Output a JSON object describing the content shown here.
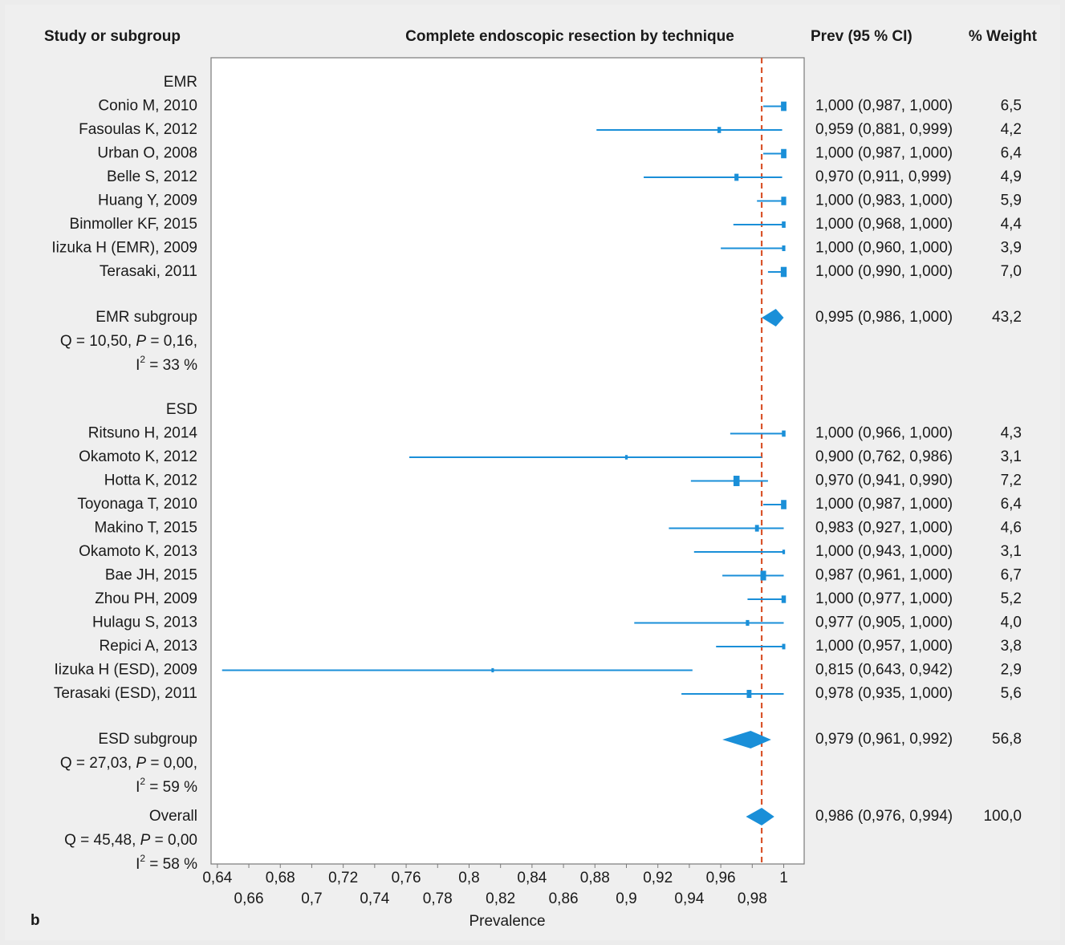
{
  "chart_data": {
    "type": "forest",
    "title": "Complete endoscopic resection by technique",
    "column_headers": {
      "study": "Study or subgroup",
      "estimate": "Prev (95 % CI)",
      "weight": "% Weight"
    },
    "x_label": "Prevalence",
    "panel_label": "b",
    "color": "#1a8fd8",
    "reference_line": {
      "value": 0.986,
      "color": "#d9542c",
      "style": "dashed"
    },
    "xlim": [
      0.636,
      1.013
    ],
    "xticks": [
      {
        "value": 0.64,
        "label": "0,64"
      },
      {
        "value": 0.66,
        "label": "0,66"
      },
      {
        "value": 0.68,
        "label": "0,68"
      },
      {
        "value": 0.7,
        "label": "0,7"
      },
      {
        "value": 0.72,
        "label": "0,72"
      },
      {
        "value": 0.74,
        "label": "0,74"
      },
      {
        "value": 0.76,
        "label": "0,76"
      },
      {
        "value": 0.78,
        "label": "0,78"
      },
      {
        "value": 0.8,
        "label": "0,8"
      },
      {
        "value": 0.82,
        "label": "0,82"
      },
      {
        "value": 0.84,
        "label": "0,84"
      },
      {
        "value": 0.86,
        "label": "0,86"
      },
      {
        "value": 0.88,
        "label": "0,88"
      },
      {
        "value": 0.9,
        "label": "0,9"
      },
      {
        "value": 0.92,
        "label": "0,92"
      },
      {
        "value": 0.94,
        "label": "0,94"
      },
      {
        "value": 0.96,
        "label": "0,96"
      },
      {
        "value": 0.98,
        "label": "0,98"
      },
      1
    ],
    "groups": [
      {
        "name": "EMR",
        "studies": [
          {
            "label": "Conio M, 2010",
            "estimate": 1.0,
            "lower": 0.987,
            "upper": 1.0,
            "ci_label": "1,000 (0,987, 1,000)",
            "weight": 6.5,
            "weight_label": "6,5"
          },
          {
            "label": "Fasoulas K, 2012",
            "estimate": 0.959,
            "lower": 0.881,
            "upper": 0.999,
            "ci_label": "0,959 (0,881, 0,999)",
            "weight": 4.2,
            "weight_label": "4,2"
          },
          {
            "label": "Urban O, 2008",
            "estimate": 1.0,
            "lower": 0.987,
            "upper": 1.0,
            "ci_label": "1,000 (0,987, 1,000)",
            "weight": 6.4,
            "weight_label": "6,4"
          },
          {
            "label": "Belle S, 2012",
            "estimate": 0.97,
            "lower": 0.911,
            "upper": 0.999,
            "ci_label": "0,970 (0,911, 0,999)",
            "weight": 4.9,
            "weight_label": "4,9"
          },
          {
            "label": "Huang Y, 2009",
            "estimate": 1.0,
            "lower": 0.983,
            "upper": 1.0,
            "ci_label": "1,000 (0,983, 1,000)",
            "weight": 5.9,
            "weight_label": "5,9"
          },
          {
            "label": "Binmoller KF, 2015",
            "estimate": 1.0,
            "lower": 0.968,
            "upper": 1.0,
            "ci_label": "1,000 (0,968, 1,000)",
            "weight": 4.4,
            "weight_label": "4,4"
          },
          {
            "label": "Iizuka H (EMR), 2009",
            "estimate": 1.0,
            "lower": 0.96,
            "upper": 1.0,
            "ci_label": "1,000 (0,960, 1,000)",
            "weight": 3.9,
            "weight_label": "3,9"
          },
          {
            "label": "Terasaki, 2011",
            "estimate": 1.0,
            "lower": 0.99,
            "upper": 1.0,
            "ci_label": "1,000 (0,990, 1,000)",
            "weight": 7.0,
            "weight_label": "7,0"
          }
        ],
        "subgroup": {
          "label": "EMR subgroup",
          "estimate": 0.995,
          "lower": 0.986,
          "upper": 1.0,
          "ci_label": "0,995 (0,986, 1,000)",
          "weight": 43.2,
          "weight_label": "43,2",
          "heterogeneity": {
            "q": "Q = 10,50, ",
            "p_symbol": "P",
            "p": " = 0,16,",
            "i_symbol": "I",
            "i_exponent": "2",
            "i": " = 33 %"
          }
        }
      },
      {
        "name": "ESD",
        "studies": [
          {
            "label": "Ritsuno H, 2014",
            "estimate": 1.0,
            "lower": 0.966,
            "upper": 1.0,
            "ci_label": "1,000 (0,966, 1,000)",
            "weight": 4.3,
            "weight_label": "4,3"
          },
          {
            "label": "Okamoto K, 2012",
            "estimate": 0.9,
            "lower": 0.762,
            "upper": 0.986,
            "ci_label": "0,900 (0,762, 0,986)",
            "weight": 3.1,
            "weight_label": "3,1"
          },
          {
            "label": "Hotta K, 2012",
            "estimate": 0.97,
            "lower": 0.941,
            "upper": 0.99,
            "ci_label": "0,970 (0,941, 0,990)",
            "weight": 7.2,
            "weight_label": "7,2"
          },
          {
            "label": "Toyonaga T, 2010",
            "estimate": 1.0,
            "lower": 0.987,
            "upper": 1.0,
            "ci_label": "1,000 (0,987, 1,000)",
            "weight": 6.4,
            "weight_label": "6,4"
          },
          {
            "label": "Makino T, 2015",
            "estimate": 0.983,
            "lower": 0.927,
            "upper": 1.0,
            "ci_label": "0,983 (0,927, 1,000)",
            "weight": 4.6,
            "weight_label": "4,6"
          },
          {
            "label": "Okamoto K, 2013",
            "estimate": 1.0,
            "lower": 0.943,
            "upper": 1.0,
            "ci_label": "1,000 (0,943, 1,000)",
            "weight": 3.1,
            "weight_label": "3,1"
          },
          {
            "label": "Bae JH, 2015",
            "estimate": 0.987,
            "lower": 0.961,
            "upper": 1.0,
            "ci_label": "0,987 (0,961, 1,000)",
            "weight": 6.7,
            "weight_label": "6,7"
          },
          {
            "label": "Zhou PH, 2009",
            "estimate": 1.0,
            "lower": 0.977,
            "upper": 1.0,
            "ci_label": "1,000 (0,977, 1,000)",
            "weight": 5.2,
            "weight_label": "5,2"
          },
          {
            "label": "Hulagu S, 2013",
            "estimate": 0.977,
            "lower": 0.905,
            "upper": 1.0,
            "ci_label": "0,977 (0,905, 1,000)",
            "weight": 4.0,
            "weight_label": "4,0"
          },
          {
            "label": "Repici A, 2013",
            "estimate": 1.0,
            "lower": 0.957,
            "upper": 1.0,
            "ci_label": "1,000 (0,957, 1,000)",
            "weight": 3.8,
            "weight_label": "3,8"
          },
          {
            "label": "Iizuka H (ESD), 2009",
            "estimate": 0.815,
            "lower": 0.643,
            "upper": 0.942,
            "ci_label": "0,815 (0,643, 0,942)",
            "weight": 2.9,
            "weight_label": "2,9"
          },
          {
            "label": "Terasaki (ESD), 2011",
            "estimate": 0.978,
            "lower": 0.935,
            "upper": 1.0,
            "ci_label": "0,978 (0,935, 1,000)",
            "weight": 5.6,
            "weight_label": "5,6"
          }
        ],
        "subgroup": {
          "label": "ESD subgroup",
          "estimate": 0.979,
          "lower": 0.961,
          "upper": 0.992,
          "ci_label": "0,979 (0,961, 0,992)",
          "weight": 56.8,
          "weight_label": "56,8",
          "heterogeneity": {
            "q": "Q = 27,03, ",
            "p_symbol": "P",
            "p": " = 0,00,",
            "i_symbol": "I",
            "i_exponent": "2",
            "i": " = 59 %"
          }
        }
      }
    ],
    "overall": {
      "label": "Overall",
      "estimate": 0.986,
      "lower": 0.976,
      "upper": 0.994,
      "ci_label": "0,986 (0,976, 0,994)",
      "weight": 100.0,
      "weight_label": "100,0",
      "heterogeneity": {
        "q": "Q = 45,48, ",
        "p_symbol": "P",
        "p": " = 0,00",
        "i_symbol": "I",
        "i_exponent": "2",
        "i": " = 58 %"
      }
    }
  }
}
